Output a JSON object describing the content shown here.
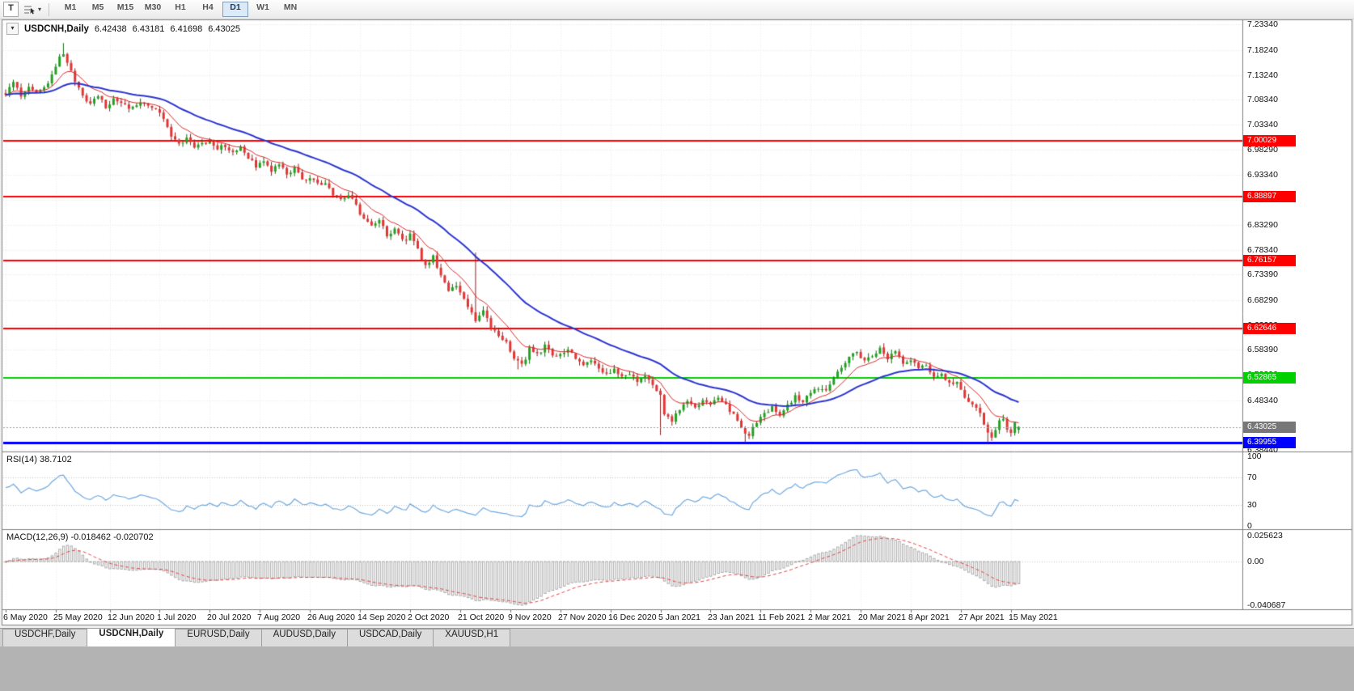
{
  "toolbar": {
    "t_button_label": "T",
    "dropdown_icon": "▾",
    "timeframes": [
      "M1",
      "M5",
      "M15",
      "M30",
      "H1",
      "H4",
      "D1",
      "W1",
      "MN"
    ],
    "active_timeframe": "D1"
  },
  "chart_header": {
    "collapse_icon": "▾",
    "symbol": "USDCNH,Daily",
    "open": "6.42438",
    "high": "6.43181",
    "low": "6.41698",
    "close": "6.43025"
  },
  "tabs": {
    "items": [
      "USDCHF,Daily",
      "USDCNH,Daily",
      "EURUSD,Daily",
      "AUDUSD,Daily",
      "USDCAD,Daily",
      "XAUUSD,H1"
    ],
    "active": "USDCNH,Daily"
  },
  "chart_data": {
    "type": "candlestick",
    "symbol": "USDCNH",
    "timeframe": "Daily",
    "y_axis": {
      "top_label_value": 7.2334,
      "bottom_label_value": 6.3844,
      "tick_labels": [
        "7.23340",
        "7.18240",
        "7.13240",
        "7.08340",
        "7.03340",
        "6.98290",
        "6.93340",
        "6.88290",
        "6.83290",
        "6.78340",
        "6.73390",
        "6.68290",
        "6.63290",
        "6.58390",
        "6.53390",
        "6.48340",
        "6.38440"
      ]
    },
    "x_ticks": [
      {
        "i": 0,
        "label": "6 May 2020"
      },
      {
        "i": 13,
        "label": "25 May 2020"
      },
      {
        "i": 27,
        "label": "12 Jun 2020"
      },
      {
        "i": 40,
        "label": "1 Jul 2020"
      },
      {
        "i": 53,
        "label": "20 Jul 2020"
      },
      {
        "i": 66,
        "label": "7 Aug 2020"
      },
      {
        "i": 79,
        "label": "26 Aug 2020"
      },
      {
        "i": 92,
        "label": "14 Sep 2020"
      },
      {
        "i": 105,
        "label": "2 Oct 2020"
      },
      {
        "i": 118,
        "label": "21 Oct 2020"
      },
      {
        "i": 131,
        "label": "9 Nov 2020"
      },
      {
        "i": 144,
        "label": "27 Nov 2020"
      },
      {
        "i": 157,
        "label": "16 Dec 2020"
      },
      {
        "i": 170,
        "label": "5 Jan 2021"
      },
      {
        "i": 183,
        "label": "23 Jan 2021"
      },
      {
        "i": 196,
        "label": "11 Feb 2021"
      },
      {
        "i": 209,
        "label": "2 Mar 2021"
      },
      {
        "i": 222,
        "label": "20 Mar 2021"
      },
      {
        "i": 235,
        "label": "8 Apr 2021"
      },
      {
        "i": 248,
        "label": "27 Apr 2021"
      },
      {
        "i": 261,
        "label": "15 May 2021"
      }
    ],
    "candle_count": 264,
    "last_candle": {
      "open": 6.42438,
      "high": 6.43181,
      "low": 6.41698,
      "close": 6.43025
    },
    "candles_style": {
      "up_color": "#21a121",
      "up_wick": "#0f6b0f",
      "down_color": "#e13535",
      "down_wick": "#8f1f1f"
    },
    "close_path_anchors": [
      [
        0,
        7.095
      ],
      [
        2,
        7.12
      ],
      [
        4,
        7.085
      ],
      [
        6,
        7.11
      ],
      [
        8,
        7.095
      ],
      [
        10,
        7.105
      ],
      [
        12,
        7.13
      ],
      [
        14,
        7.165
      ],
      [
        15,
        7.178
      ],
      [
        16,
        7.155
      ],
      [
        18,
        7.12
      ],
      [
        20,
        7.093
      ],
      [
        22,
        7.075
      ],
      [
        24,
        7.088
      ],
      [
        26,
        7.07
      ],
      [
        28,
        7.085
      ],
      [
        30,
        7.078
      ],
      [
        33,
        7.065
      ],
      [
        36,
        7.078
      ],
      [
        39,
        7.068
      ],
      [
        41,
        7.045
      ],
      [
        43,
        7.008
      ],
      [
        45,
        6.995
      ],
      [
        47,
        7.006
      ],
      [
        49,
        6.988
      ],
      [
        51,
        6.997
      ],
      [
        53,
        7.0
      ],
      [
        55,
        6.985
      ],
      [
        57,
        6.992
      ],
      [
        59,
        6.975
      ],
      [
        61,
        6.985
      ],
      [
        63,
        6.965
      ],
      [
        65,
        6.952
      ],
      [
        67,
        6.962
      ],
      [
        69,
        6.943
      ],
      [
        71,
        6.952
      ],
      [
        73,
        6.935
      ],
      [
        75,
        6.945
      ],
      [
        77,
        6.925
      ],
      [
        79,
        6.928
      ],
      [
        81,
        6.913
      ],
      [
        83,
        6.92
      ],
      [
        85,
        6.893
      ],
      [
        87,
        6.885
      ],
      [
        89,
        6.896
      ],
      [
        91,
        6.872
      ],
      [
        93,
        6.843
      ],
      [
        95,
        6.828
      ],
      [
        97,
        6.842
      ],
      [
        99,
        6.813
      ],
      [
        101,
        6.826
      ],
      [
        103,
        6.8
      ],
      [
        105,
        6.812
      ],
      [
        107,
        6.783
      ],
      [
        109,
        6.752
      ],
      [
        111,
        6.768
      ],
      [
        113,
        6.735
      ],
      [
        115,
        6.703
      ],
      [
        117,
        6.715
      ],
      [
        119,
        6.682
      ],
      [
        121,
        6.66
      ],
      [
        122,
        6.645
      ],
      [
        124,
        6.663
      ],
      [
        126,
        6.628
      ],
      [
        128,
        6.613
      ],
      [
        130,
        6.598
      ],
      [
        132,
        6.568
      ],
      [
        134,
        6.552
      ],
      [
        136,
        6.585
      ],
      [
        138,
        6.573
      ],
      [
        140,
        6.592
      ],
      [
        142,
        6.57
      ],
      [
        144,
        6.576
      ],
      [
        146,
        6.586
      ],
      [
        148,
        6.568
      ],
      [
        150,
        6.553
      ],
      [
        152,
        6.561
      ],
      [
        154,
        6.544
      ],
      [
        156,
        6.534
      ],
      [
        158,
        6.545
      ],
      [
        160,
        6.528
      ],
      [
        162,
        6.539
      ],
      [
        164,
        6.523
      ],
      [
        166,
        6.531
      ],
      [
        168,
        6.518
      ],
      [
        170,
        6.49
      ],
      [
        171,
        6.455
      ],
      [
        173,
        6.443
      ],
      [
        175,
        6.466
      ],
      [
        177,
        6.482
      ],
      [
        179,
        6.468
      ],
      [
        181,
        6.487
      ],
      [
        183,
        6.474
      ],
      [
        185,
        6.49
      ],
      [
        187,
        6.474
      ],
      [
        189,
        6.453
      ],
      [
        191,
        6.428
      ],
      [
        193,
        6.413
      ],
      [
        195,
        6.442
      ],
      [
        197,
        6.458
      ],
      [
        199,
        6.468
      ],
      [
        201,
        6.452
      ],
      [
        203,
        6.472
      ],
      [
        205,
        6.49
      ],
      [
        207,
        6.478
      ],
      [
        209,
        6.498
      ],
      [
        211,
        6.51
      ],
      [
        213,
        6.502
      ],
      [
        215,
        6.528
      ],
      [
        217,
        6.546
      ],
      [
        219,
        6.568
      ],
      [
        221,
        6.578
      ],
      [
        223,
        6.562
      ],
      [
        225,
        6.574
      ],
      [
        227,
        6.584
      ],
      [
        229,
        6.568
      ],
      [
        231,
        6.578
      ],
      [
        233,
        6.558
      ],
      [
        235,
        6.562
      ],
      [
        237,
        6.548
      ],
      [
        239,
        6.553
      ],
      [
        241,
        6.533
      ],
      [
        243,
        6.538
      ],
      [
        245,
        6.516
      ],
      [
        247,
        6.52
      ],
      [
        249,
        6.487
      ],
      [
        251,
        6.472
      ],
      [
        253,
        6.458
      ],
      [
        255,
        6.418
      ],
      [
        256,
        6.405
      ],
      [
        257,
        6.42
      ],
      [
        258,
        6.44
      ],
      [
        259,
        6.445
      ],
      [
        260,
        6.428
      ],
      [
        261,
        6.422
      ],
      [
        262,
        6.436
      ],
      [
        263,
        6.43
      ]
    ],
    "spikes": [
      {
        "i": 15,
        "h": 7.196
      },
      {
        "i": 122,
        "h": 6.778
      },
      {
        "i": 133,
        "l": 6.545
      },
      {
        "i": 170,
        "l": 6.414
      },
      {
        "i": 192,
        "l": 6.398
      },
      {
        "i": 255,
        "l": 6.398
      }
    ],
    "horizontal_lines": [
      {
        "label": "7.00029",
        "value": 7.00029,
        "color": "#fe0000",
        "width": 2
      },
      {
        "label": "6.88897",
        "value": 6.88897,
        "color": "#fe0000",
        "width": 2
      },
      {
        "label": "6.76157",
        "value": 6.76157,
        "color": "#fe0000",
        "width": 2
      },
      {
        "label": "6.62646",
        "value": 6.62646,
        "color": "#fe0000",
        "width": 2
      },
      {
        "label": "6.52865",
        "value": 6.52865,
        "color": "#00cf00",
        "width": 2
      },
      {
        "label": "6.39955",
        "value": 6.39955,
        "color": "#0000ff",
        "width": 3
      }
    ],
    "current_price": {
      "label": "6.43025",
      "value": 6.43025,
      "line_color": "#a0a0a0",
      "tag_color": "#777777"
    },
    "moving_averages": [
      {
        "type": "ema",
        "period": 10,
        "color": "#d92b2b",
        "width": 1
      },
      {
        "type": "ema",
        "period": 34,
        "color": "#2b35cf",
        "width": 2
      }
    ],
    "rsi": {
      "label": "RSI(14) 38.7102",
      "period": 14,
      "value": 38.7102,
      "scale_labels": [
        "100",
        "70",
        "30",
        "0"
      ],
      "upper_level": 70,
      "lower_level": 30,
      "line_color": "#70a9dd"
    },
    "macd": {
      "label": "MACD(12,26,9) -0.018462 -0.020702",
      "fast": 12,
      "slow": 26,
      "signal_period": 9,
      "macd_value": -0.018462,
      "signal_value": -0.020702,
      "scale_labels": [
        "0.025623",
        "0.00",
        "-0.040687"
      ],
      "histogram_color": "#ababab",
      "signal_color": "#e04545"
    }
  }
}
